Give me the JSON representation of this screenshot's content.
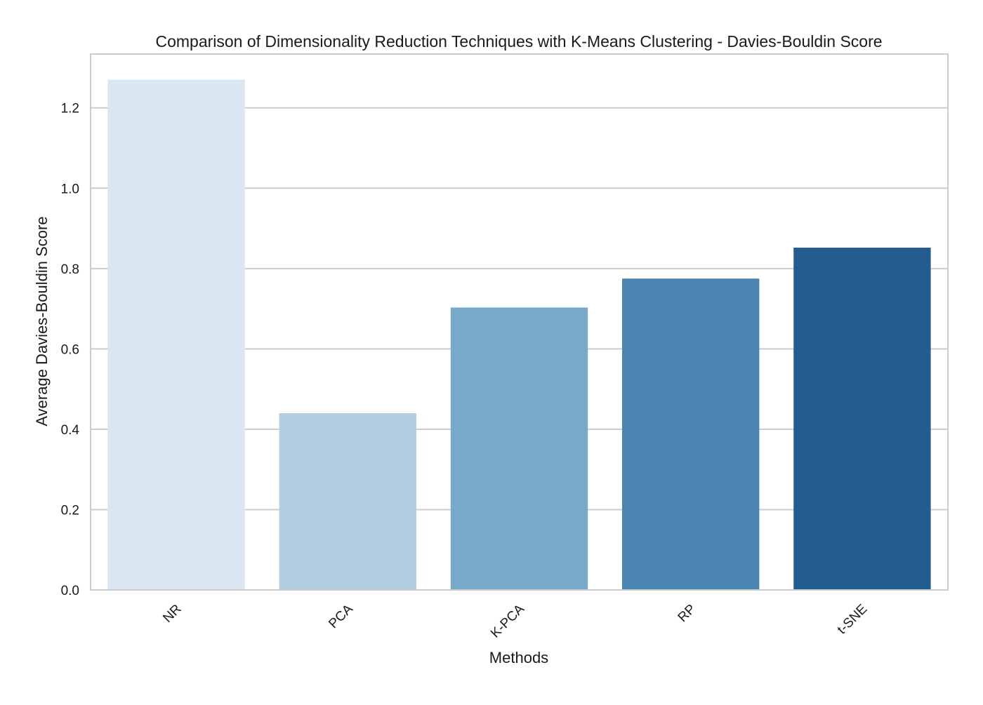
{
  "chart_data": {
    "type": "bar",
    "title": "Comparison of Dimensionality Reduction Techniques with K-Means Clustering - Davies-Bouldin Score",
    "xlabel": "Methods",
    "ylabel": "Average Davies-Bouldin Score",
    "categories": [
      "NR",
      "PCA",
      "K-PCA",
      "RP",
      "t-SNE"
    ],
    "values": [
      1.27,
      0.44,
      0.703,
      0.775,
      0.852
    ],
    "colors": [
      "#dbe6f3",
      "#b3cde1",
      "#78a9c9",
      "#4a85b2",
      "#235c91"
    ],
    "yticks": [
      "0.0",
      "0.2",
      "0.4",
      "0.6",
      "0.8",
      "1.0",
      "1.2"
    ],
    "ytick_values": [
      0,
      0.2,
      0.4,
      0.6,
      0.8,
      1.0,
      1.2
    ],
    "ylim": [
      0,
      1.334
    ],
    "grid": true,
    "xtick_rotation": 45
  }
}
